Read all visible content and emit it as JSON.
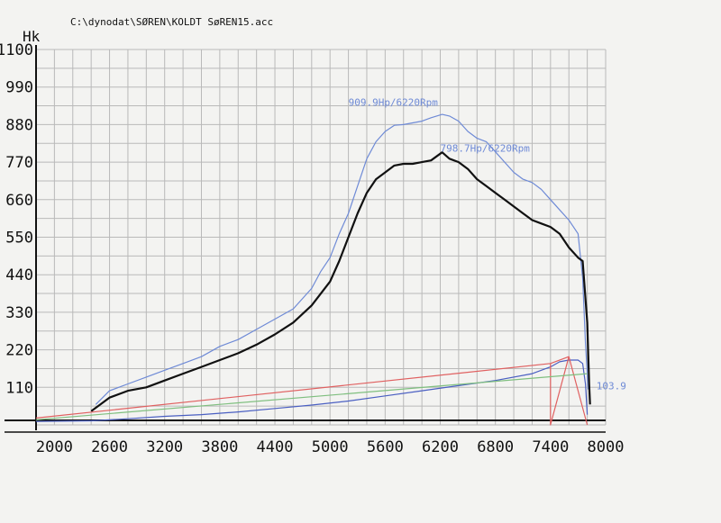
{
  "header": {
    "file_path": "C:\\dynodat\\SØREN\\KOLDT SøREN15.acc"
  },
  "colors": {
    "paper": "#f3f3f1",
    "grid": "#b9b9b9",
    "hp_wheel_line": "#6e8ad6",
    "hp_engine_line": "#111111",
    "loss_line": "#4a5fc2",
    "red_line": "#e06060",
    "green_line": "#7fbf7f",
    "annotation_text": "#5b78cf"
  },
  "chart_data": {
    "type": "line",
    "title": "",
    "xlabel": "",
    "ylabel": "Hk",
    "xlim": [
      1800,
      8000
    ],
    "ylim": [
      0,
      1100
    ],
    "x_ticks": [
      2000,
      2600,
      3200,
      3800,
      4400,
      5000,
      5600,
      6200,
      6800,
      7400,
      8000
    ],
    "y_ticks": [
      110,
      220,
      330,
      440,
      550,
      660,
      770,
      880,
      990,
      1100
    ],
    "grid": true,
    "series": [
      {
        "key": "wheel_hp",
        "color": "#6e8ad6",
        "points": [
          [
            2450,
            60
          ],
          [
            2600,
            100
          ],
          [
            2800,
            120
          ],
          [
            3000,
            140
          ],
          [
            3200,
            160
          ],
          [
            3400,
            180
          ],
          [
            3600,
            200
          ],
          [
            3800,
            230
          ],
          [
            4000,
            250
          ],
          [
            4200,
            280
          ],
          [
            4400,
            310
          ],
          [
            4600,
            340
          ],
          [
            4800,
            400
          ],
          [
            4900,
            450
          ],
          [
            5000,
            490
          ],
          [
            5100,
            560
          ],
          [
            5200,
            620
          ],
          [
            5300,
            700
          ],
          [
            5400,
            780
          ],
          [
            5500,
            830
          ],
          [
            5600,
            860
          ],
          [
            5700,
            878
          ],
          [
            5800,
            880
          ],
          [
            5900,
            885
          ],
          [
            6000,
            890
          ],
          [
            6100,
            900
          ],
          [
            6220,
            909.9
          ],
          [
            6300,
            905
          ],
          [
            6400,
            890
          ],
          [
            6500,
            860
          ],
          [
            6600,
            840
          ],
          [
            6700,
            830
          ],
          [
            6800,
            800
          ],
          [
            6900,
            770
          ],
          [
            7000,
            740
          ],
          [
            7100,
            720
          ],
          [
            7200,
            710
          ],
          [
            7300,
            690
          ],
          [
            7400,
            660
          ],
          [
            7500,
            630
          ],
          [
            7600,
            600
          ],
          [
            7650,
            580
          ],
          [
            7700,
            560
          ],
          [
            7750,
            430
          ],
          [
            7780,
            240
          ],
          [
            7800,
            150
          ],
          [
            7810,
            103.9
          ]
        ]
      },
      {
        "key": "engine_hp",
        "color": "#111111",
        "points": [
          [
            2400,
            40
          ],
          [
            2500,
            60
          ],
          [
            2600,
            80
          ],
          [
            2800,
            100
          ],
          [
            3000,
            110
          ],
          [
            3200,
            130
          ],
          [
            3400,
            150
          ],
          [
            3600,
            170
          ],
          [
            3800,
            190
          ],
          [
            4000,
            210
          ],
          [
            4200,
            235
          ],
          [
            4400,
            265
          ],
          [
            4600,
            300
          ],
          [
            4800,
            350
          ],
          [
            5000,
            420
          ],
          [
            5100,
            480
          ],
          [
            5200,
            550
          ],
          [
            5300,
            620
          ],
          [
            5400,
            680
          ],
          [
            5500,
            720
          ],
          [
            5600,
            740
          ],
          [
            5700,
            760
          ],
          [
            5800,
            765
          ],
          [
            5900,
            765
          ],
          [
            6000,
            770
          ],
          [
            6100,
            775
          ],
          [
            6220,
            798.7
          ],
          [
            6300,
            780
          ],
          [
            6400,
            770
          ],
          [
            6500,
            750
          ],
          [
            6600,
            720
          ],
          [
            6700,
            700
          ],
          [
            6800,
            680
          ],
          [
            6900,
            660
          ],
          [
            7000,
            640
          ],
          [
            7100,
            620
          ],
          [
            7200,
            600
          ],
          [
            7300,
            590
          ],
          [
            7400,
            580
          ],
          [
            7500,
            560
          ],
          [
            7600,
            520
          ],
          [
            7700,
            490
          ],
          [
            7750,
            480
          ],
          [
            7800,
            300
          ],
          [
            7820,
            120
          ],
          [
            7830,
            60
          ]
        ]
      },
      {
        "key": "loss",
        "color": "#4a5fc2",
        "points": [
          [
            1800,
            10
          ],
          [
            2400,
            12
          ],
          [
            2800,
            18
          ],
          [
            3200,
            25
          ],
          [
            3600,
            30
          ],
          [
            4000,
            38
          ],
          [
            4400,
            48
          ],
          [
            4800,
            58
          ],
          [
            5200,
            70
          ],
          [
            5600,
            85
          ],
          [
            6000,
            100
          ],
          [
            6400,
            115
          ],
          [
            6800,
            130
          ],
          [
            7200,
            150
          ],
          [
            7400,
            170
          ],
          [
            7500,
            185
          ],
          [
            7600,
            190
          ],
          [
            7700,
            190
          ],
          [
            7750,
            180
          ],
          [
            7780,
            120
          ],
          [
            7800,
            30
          ]
        ]
      },
      {
        "key": "red_ramp",
        "color": "#e06060",
        "points": [
          [
            1800,
            20
          ],
          [
            7400,
            180
          ],
          [
            7600,
            200
          ],
          [
            7400,
            180
          ],
          [
            7400,
            0
          ],
          [
            7600,
            200
          ],
          [
            7800,
            0
          ]
        ]
      },
      {
        "key": "green_ramp",
        "color": "#7fbf7f",
        "points": [
          [
            1800,
            15
          ],
          [
            7800,
            150
          ]
        ]
      }
    ],
    "annotations": [
      {
        "text": "909.9Hp/6220Rpm",
        "x": 5200,
        "y": 935,
        "color": "#6e8ad6"
      },
      {
        "text": "798.7Hp/6220Rpm",
        "x": 6200,
        "y": 800,
        "color": "#6e8ad6"
      },
      {
        "text": "103.9",
        "x": 7900,
        "y": 103.9,
        "color": "#6e8ad6"
      }
    ]
  }
}
